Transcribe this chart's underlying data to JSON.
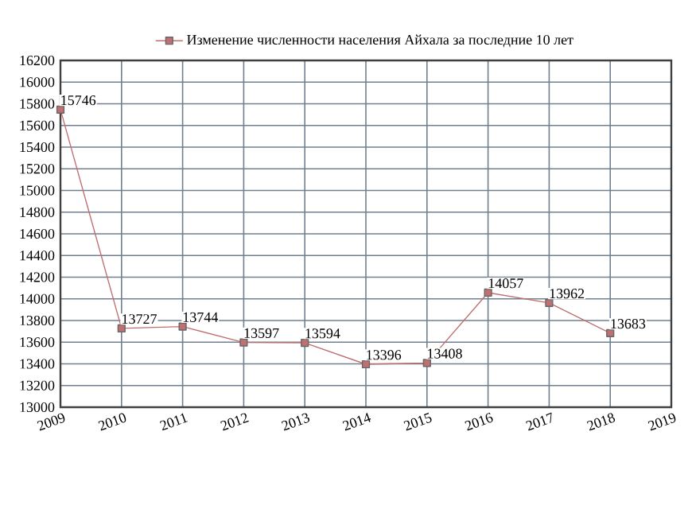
{
  "chart_data": {
    "type": "line",
    "x": [
      2009,
      2010,
      2011,
      2012,
      2013,
      2014,
      2015,
      2016,
      2017,
      2018
    ],
    "series": [
      {
        "name": "Изменение численности населения Айхала за последние 10 лет",
        "color": "#c07070",
        "values": [
          15746,
          13727,
          13744,
          13597,
          13594,
          13396,
          13408,
          14057,
          13962,
          13683
        ]
      }
    ],
    "xlim": [
      2009,
      2019
    ],
    "xticks": [
      2009,
      2010,
      2011,
      2012,
      2013,
      2014,
      2015,
      2016,
      2017,
      2018,
      2019
    ],
    "ylim": [
      13000,
      16200
    ],
    "yticks": [
      13000,
      13200,
      13400,
      13600,
      13800,
      14000,
      14200,
      14400,
      14600,
      14800,
      15000,
      15200,
      15400,
      15600,
      15800,
      16000,
      16200
    ],
    "grid": true,
    "legend": "top",
    "marker": "square",
    "line_style": "solid",
    "data_labels": true
  }
}
